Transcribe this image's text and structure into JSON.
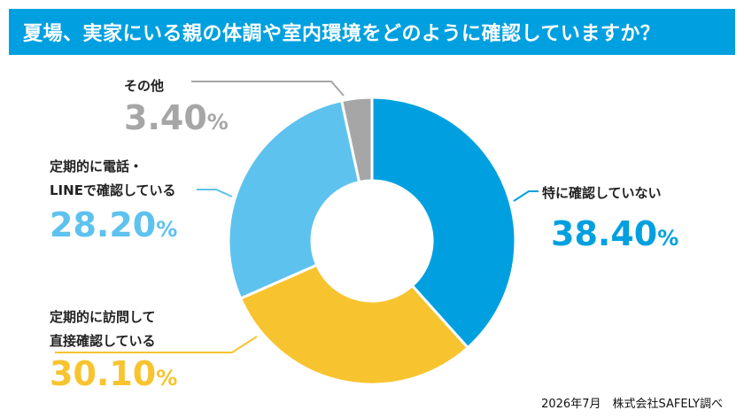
{
  "title": "夏場、実家にいる親の体調や室内環境をどのように確認していますか？",
  "source": "2026年7月　株式会社SAFELY調べ",
  "colors": {
    "title_bg": "#00a0e0",
    "slice_1": "#00a0e0",
    "slice_2": "#f7c430",
    "slice_3": "#5ec2ee",
    "slice_4": "#a6a6a6"
  },
  "chart_data": {
    "type": "pie",
    "variant": "donut",
    "unit": "%",
    "slices": [
      {
        "label": "特に確認していない",
        "value": 38.4,
        "display": "38.40",
        "color": "#00a0e0"
      },
      {
        "label_lines": [
          "定期的に訪問して",
          "直接確認している"
        ],
        "value": 30.1,
        "display": "30.10",
        "color": "#f7c430"
      },
      {
        "label_lines": [
          "定期的に電話・",
          "LINEで確認している"
        ],
        "value": 28.2,
        "display": "28.20",
        "color": "#5ec2ee"
      },
      {
        "label": "その他",
        "value": 3.4,
        "display": "3.40",
        "color": "#a6a6a6"
      }
    ]
  }
}
